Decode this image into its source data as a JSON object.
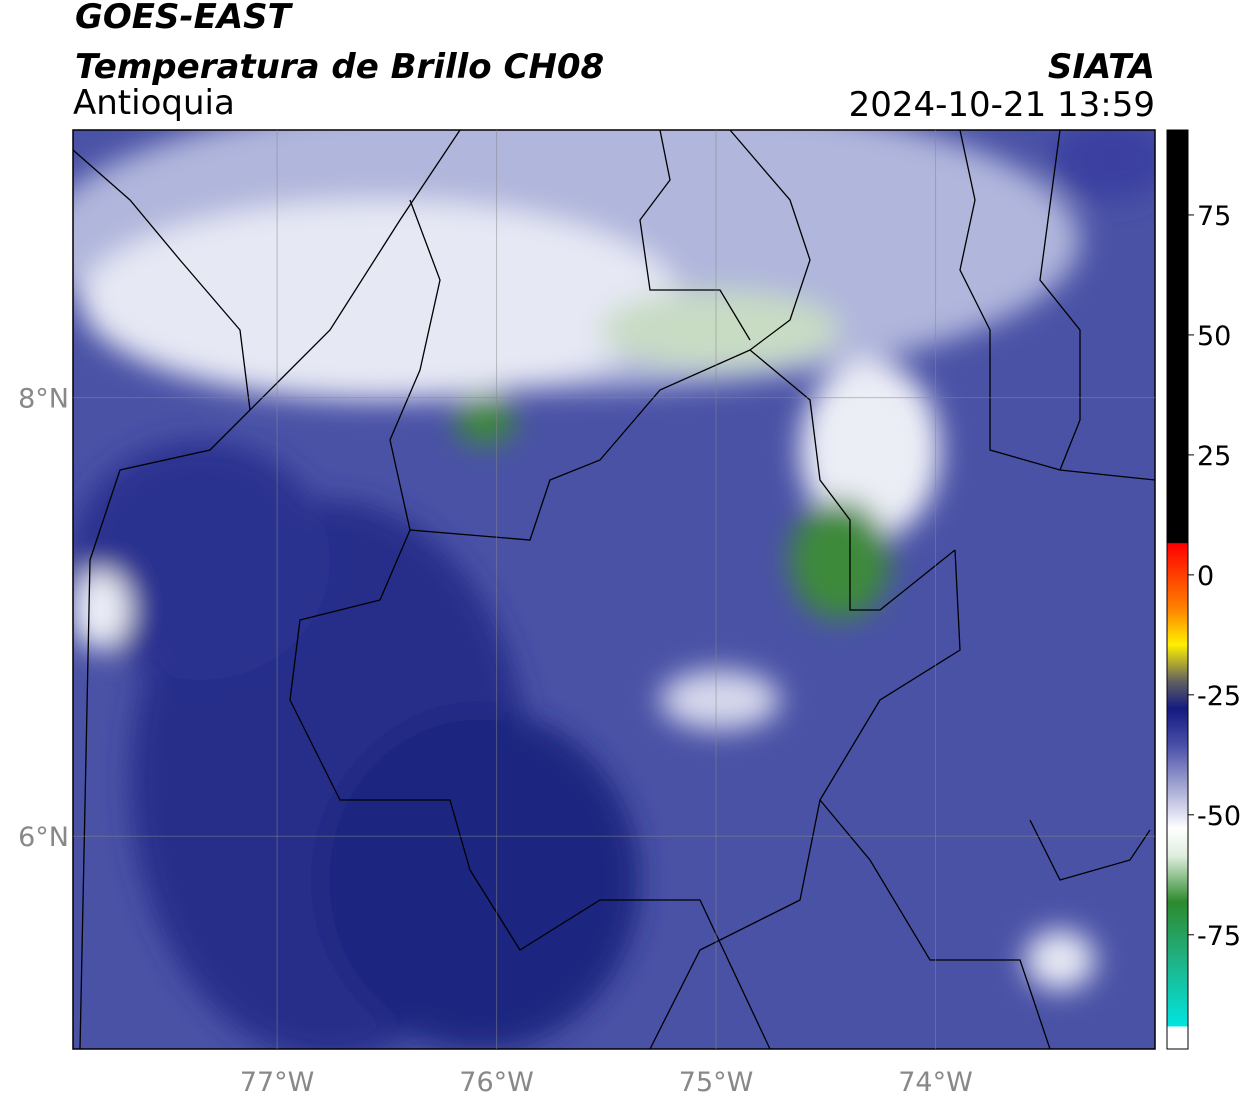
{
  "header": {
    "title": "GOES-EAST",
    "subtitle": "Temperatura de Brillo CH08",
    "region": "Antioquia",
    "source": "SIATA",
    "datetime": "2024-10-21 13:59"
  },
  "map": {
    "xlim": [
      -77.93,
      -73.0
    ],
    "ylim": [
      5.03,
      9.22
    ],
    "xticks": [
      {
        "value": -77,
        "label": "77°W"
      },
      {
        "value": -76,
        "label": "76°W"
      },
      {
        "value": -75,
        "label": "75°W"
      },
      {
        "value": -74,
        "label": "74°W"
      }
    ],
    "yticks": [
      {
        "value": 8,
        "label": "8°N"
      },
      {
        "value": 6,
        "label": "6°N"
      }
    ],
    "grid": true
  },
  "colorbar": {
    "lim": [
      -98.8,
      92.7
    ],
    "ticks": [
      75,
      50,
      25,
      0,
      -25,
      -50,
      -75
    ]
  }
}
